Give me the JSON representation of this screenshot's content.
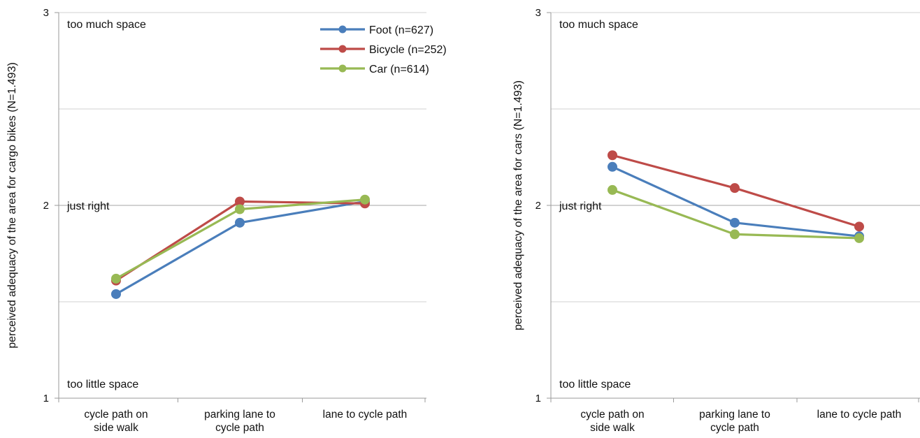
{
  "chart_data": [
    {
      "type": "line",
      "ylabel": "perceived adequacy of the area for cargo bikes (N=1.493)",
      "ylim": [
        1,
        3
      ],
      "yticks": [
        "1",
        "2",
        "3"
      ],
      "grid": true,
      "categories": [
        [
          "cycle path on",
          "side walk"
        ],
        [
          "parking lane to",
          "cycle path"
        ],
        [
          "lane to cycle path"
        ]
      ],
      "annotations": {
        "top": "too much space",
        "middle": "just right",
        "bottom": "too little space"
      },
      "legend_position": "top-right",
      "series": [
        {
          "name": "Foot (n=627)",
          "color": "#4a7ebb",
          "values": [
            1.54,
            1.91,
            2.02
          ]
        },
        {
          "name": "Bicycle (n=252)",
          "color": "#be4b48",
          "values": [
            1.61,
            2.02,
            2.01
          ]
        },
        {
          "name": "Car (n=614)",
          "color": "#98b954",
          "values": [
            1.62,
            1.98,
            2.03
          ]
        }
      ]
    },
    {
      "type": "line",
      "ylabel": "perceived adequacy of the area for cars (N=1.493)",
      "ylim": [
        1,
        3
      ],
      "yticks": [
        "1",
        "2",
        "3"
      ],
      "grid": true,
      "categories": [
        [
          "cycle path on",
          "side walk"
        ],
        [
          "parking lane to",
          "cycle path"
        ],
        [
          "lane to cycle path"
        ]
      ],
      "annotations": {
        "top": "too much space",
        "middle": "just right",
        "bottom": "too little space"
      },
      "series": [
        {
          "name": "Foot (n=627)",
          "color": "#4a7ebb",
          "values": [
            2.2,
            1.91,
            1.84
          ]
        },
        {
          "name": "Bicycle (n=252)",
          "color": "#be4b48",
          "values": [
            2.26,
            2.09,
            1.89
          ]
        },
        {
          "name": "Car (n=614)",
          "color": "#98b954",
          "values": [
            2.08,
            1.85,
            1.83
          ]
        }
      ]
    }
  ]
}
